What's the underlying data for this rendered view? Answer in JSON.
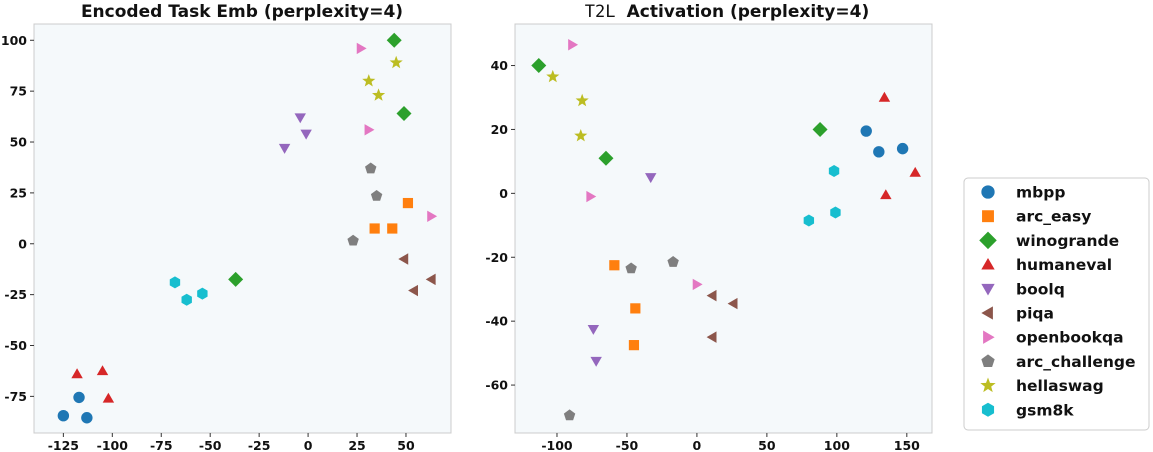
{
  "chart_data": [
    {
      "type": "scatter",
      "title": "Encoded Task Emb (perplexity=4)",
      "xlim": [
        -140,
        73
      ],
      "ylim": [
        -93,
        108
      ],
      "xticks": [
        -125,
        -100,
        -75,
        -50,
        -25,
        0,
        25,
        50
      ],
      "yticks": [
        -75,
        -50,
        -25,
        0,
        25,
        50,
        75,
        100
      ],
      "grid": false,
      "series": [
        {
          "name": "mbpp",
          "points": [
            [
              -125,
              -84.5
            ],
            [
              -117,
              -75.5
            ],
            [
              -113,
              -85.5
            ]
          ]
        },
        {
          "name": "arc_easy",
          "points": [
            [
              34,
              7.5
            ],
            [
              43,
              7.5
            ],
            [
              51,
              20
            ]
          ]
        },
        {
          "name": "winogrande",
          "points": [
            [
              44,
              100
            ],
            [
              49,
              64
            ],
            [
              -37,
              -17.5
            ]
          ]
        },
        {
          "name": "humaneval",
          "points": [
            [
              -118,
              -64
            ],
            [
              -105,
              -62.5
            ],
            [
              -102,
              -76
            ]
          ]
        },
        {
          "name": "boolq",
          "points": [
            [
              -12,
              47
            ],
            [
              -4,
              62
            ],
            [
              -1,
              54
            ]
          ]
        },
        {
          "name": "piqa",
          "points": [
            [
              49,
              -7.5
            ],
            [
              54,
              -23
            ],
            [
              63,
              -17.5
            ]
          ]
        },
        {
          "name": "openbookqa",
          "points": [
            [
              27,
              96
            ],
            [
              31,
              56
            ],
            [
              63,
              13.5
            ]
          ]
        },
        {
          "name": "arc_challenge",
          "points": [
            [
              23,
              1.5
            ],
            [
              32,
              37
            ],
            [
              35,
              23.5
            ]
          ]
        },
        {
          "name": "hellaswag",
          "points": [
            [
              31,
              80
            ],
            [
              36,
              73
            ],
            [
              45,
              89
            ]
          ]
        },
        {
          "name": "gsm8k",
          "points": [
            [
              -68,
              -19
            ],
            [
              -62,
              -27.5
            ],
            [
              -54,
              -24.5
            ]
          ]
        }
      ]
    },
    {
      "type": "scatter",
      "title_prefix": "T2L",
      "title_suffix": "Activation (perplexity=4)",
      "xlim": [
        -130,
        168
      ],
      "ylim": [
        -75,
        53
      ],
      "xticks": [
        -100,
        -50,
        0,
        50,
        100,
        150
      ],
      "yticks": [
        -60,
        -40,
        -20,
        0,
        20,
        40
      ],
      "grid": false,
      "series": [
        {
          "name": "mbpp",
          "points": [
            [
              121,
              19.5
            ],
            [
              130,
              13
            ],
            [
              147,
              14
            ]
          ]
        },
        {
          "name": "arc_easy",
          "points": [
            [
              -59,
              -22.5
            ],
            [
              -44,
              -36
            ],
            [
              -45,
              -47.5
            ]
          ]
        },
        {
          "name": "winogrande",
          "points": [
            [
              -113,
              40
            ],
            [
              -65,
              11
            ],
            [
              88,
              20
            ]
          ]
        },
        {
          "name": "humaneval",
          "points": [
            [
              134,
              30
            ],
            [
              135,
              -0.5
            ],
            [
              156,
              6.5
            ]
          ]
        },
        {
          "name": "boolq",
          "points": [
            [
              -33,
              5
            ],
            [
              -74,
              -42.5
            ],
            [
              -72,
              -52.5
            ]
          ]
        },
        {
          "name": "piqa",
          "points": [
            [
              11,
              -32
            ],
            [
              26,
              -34.5
            ],
            [
              11,
              -45
            ]
          ]
        },
        {
          "name": "openbookqa",
          "points": [
            [
              -89,
              46.5
            ],
            [
              -76,
              -1
            ],
            [
              0,
              -28.5
            ]
          ]
        },
        {
          "name": "arc_challenge",
          "points": [
            [
              -47,
              -23.5
            ],
            [
              -17,
              -21.5
            ],
            [
              -91,
              -69.5
            ]
          ]
        },
        {
          "name": "hellaswag",
          "points": [
            [
              -103,
              36.5
            ],
            [
              -82,
              29
            ],
            [
              -83,
              18
            ]
          ]
        },
        {
          "name": "gsm8k",
          "points": [
            [
              98,
              7
            ],
            [
              99,
              -6
            ],
            [
              80,
              -8.5
            ]
          ]
        }
      ]
    }
  ],
  "legend": {
    "placement": "right",
    "items": [
      {
        "name": "mbpp",
        "color": "#1f77b4",
        "marker": "circle"
      },
      {
        "name": "arc_easy",
        "color": "#ff7f0e",
        "marker": "square"
      },
      {
        "name": "winogrande",
        "color": "#2ca02c",
        "marker": "diamond"
      },
      {
        "name": "humaneval",
        "color": "#d62728",
        "marker": "triangle-up"
      },
      {
        "name": "boolq",
        "color": "#9467bd",
        "marker": "triangle-down"
      },
      {
        "name": "piqa",
        "color": "#8c564b",
        "marker": "triangle-left"
      },
      {
        "name": "openbookqa",
        "color": "#e377c2",
        "marker": "triangle-right"
      },
      {
        "name": "arc_challenge",
        "color": "#7f7f7f",
        "marker": "pentagon"
      },
      {
        "name": "hellaswag",
        "color": "#bcbd22",
        "marker": "star"
      },
      {
        "name": "gsm8k",
        "color": "#17becf",
        "marker": "hexagon"
      }
    ]
  },
  "colors": {
    "plot_background": "#f5f9fb",
    "axes_edge": "#cccccc"
  }
}
